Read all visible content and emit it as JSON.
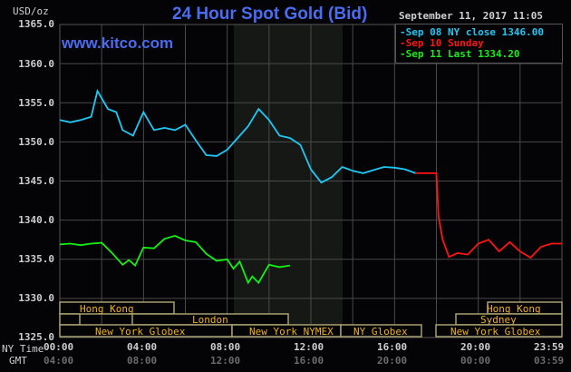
{
  "header": {
    "title": "24 Hour Spot Gold (Bid)",
    "site": "www.kitco.com",
    "unit": "USD/oz",
    "datetime": "September 11, 2017 11:05"
  },
  "legend": [
    {
      "label": "Sep 08 NY close 1346.00",
      "color": "#1ec8f5"
    },
    {
      "label": "Sep 10 Sunday",
      "color": "#ff1414"
    },
    {
      "label": "Sep 11 Last 1334.20",
      "color": "#14f014"
    }
  ],
  "y_ticks": [
    "1365.0",
    "1360.0",
    "1355.0",
    "1350.0",
    "1345.0",
    "1340.0",
    "1335.0",
    "1330.0",
    "1325.0"
  ],
  "x_axis": {
    "ny_label": "NY Time",
    "gmt_label": "GMT",
    "ny_ticks": [
      "00:00",
      "04:00",
      "08:00",
      "12:00",
      "16:00",
      "20:00",
      "23:59"
    ],
    "gmt_ticks": [
      "04:00",
      "08:00",
      "12:00",
      "16:00",
      "20:00",
      "00:00",
      "03:59"
    ]
  },
  "sessions": {
    "row1": [
      "Hong Kong",
      "Hong Kong"
    ],
    "row2": [
      "London",
      "Sydney"
    ],
    "row3": [
      "New York Globex",
      "New York NYMEX",
      "NY Globex",
      "New York Globex"
    ]
  },
  "chart_data": {
    "type": "line",
    "title": "24 Hour Spot Gold (Bid)",
    "xlabel": "NY Time / GMT",
    "ylabel": "USD/oz",
    "ylim": [
      1325,
      1365
    ],
    "xlim_hours": [
      0,
      24
    ],
    "grid": true,
    "legend_position": "top-right",
    "annotations": [
      "www.kitco.com",
      "September 11, 2017 11:05",
      "Shaded region 08:20-13:30 NY time (New York NYMEX session)"
    ],
    "series": [
      {
        "name": "Sep 08 NY close 1346.00",
        "color": "#1ec8f5",
        "x_hours": [
          0,
          0.5,
          1,
          1.5,
          1.8,
          2.3,
          2.7,
          3,
          3.5,
          4,
          4.5,
          5,
          5.5,
          6,
          6.5,
          7,
          7.5,
          8,
          8.5,
          9,
          9.5,
          10,
          10.5,
          11,
          11.5,
          12,
          12.5,
          13,
          13.5,
          14,
          14.5,
          15,
          15.5,
          16,
          16.5,
          17
        ],
        "values": [
          1352.8,
          1352.5,
          1352.8,
          1353.2,
          1356.5,
          1354.2,
          1353.8,
          1351.5,
          1350.8,
          1353.8,
          1351.5,
          1351.8,
          1351.5,
          1352.2,
          1350.2,
          1348.3,
          1348.2,
          1349.0,
          1350.5,
          1352.0,
          1354.2,
          1352.8,
          1350.8,
          1350.5,
          1349.6,
          1346.5,
          1344.8,
          1345.5,
          1346.8,
          1346.3,
          1346.0,
          1346.4,
          1346.8,
          1346.7,
          1346.5,
          1346.0
        ]
      },
      {
        "name": "Sep 10 Sunday",
        "color": "#ff1414",
        "x_hours": [
          17,
          18,
          18.1,
          18.3,
          18.6,
          19,
          19.5,
          20,
          20.5,
          21,
          21.5,
          22,
          22.5,
          23,
          23.5,
          24
        ],
        "values": [
          1346.0,
          1346.0,
          1340.5,
          1337.5,
          1335.3,
          1335.8,
          1335.6,
          1337.0,
          1337.5,
          1336.0,
          1337.2,
          1336.0,
          1335.2,
          1336.6,
          1337.0,
          1337.0
        ]
      },
      {
        "name": "Sep 11 Last 1334.20",
        "color": "#14f014",
        "x_hours": [
          0,
          0.5,
          1,
          1.5,
          2,
          2.5,
          3,
          3.3,
          3.6,
          4,
          4.5,
          5,
          5.5,
          6,
          6.5,
          7,
          7.5,
          8,
          8.3,
          8.6,
          9,
          9.2,
          9.5,
          10,
          10.5,
          11
        ],
        "values": [
          1336.9,
          1337.0,
          1336.8,
          1337.0,
          1337.1,
          1335.8,
          1334.3,
          1334.9,
          1334.2,
          1336.5,
          1336.4,
          1337.6,
          1338.0,
          1337.4,
          1337.2,
          1335.7,
          1334.8,
          1335.0,
          1333.8,
          1334.7,
          1332.0,
          1332.8,
          1332.0,
          1334.3,
          1334.0,
          1334.2
        ]
      }
    ]
  }
}
